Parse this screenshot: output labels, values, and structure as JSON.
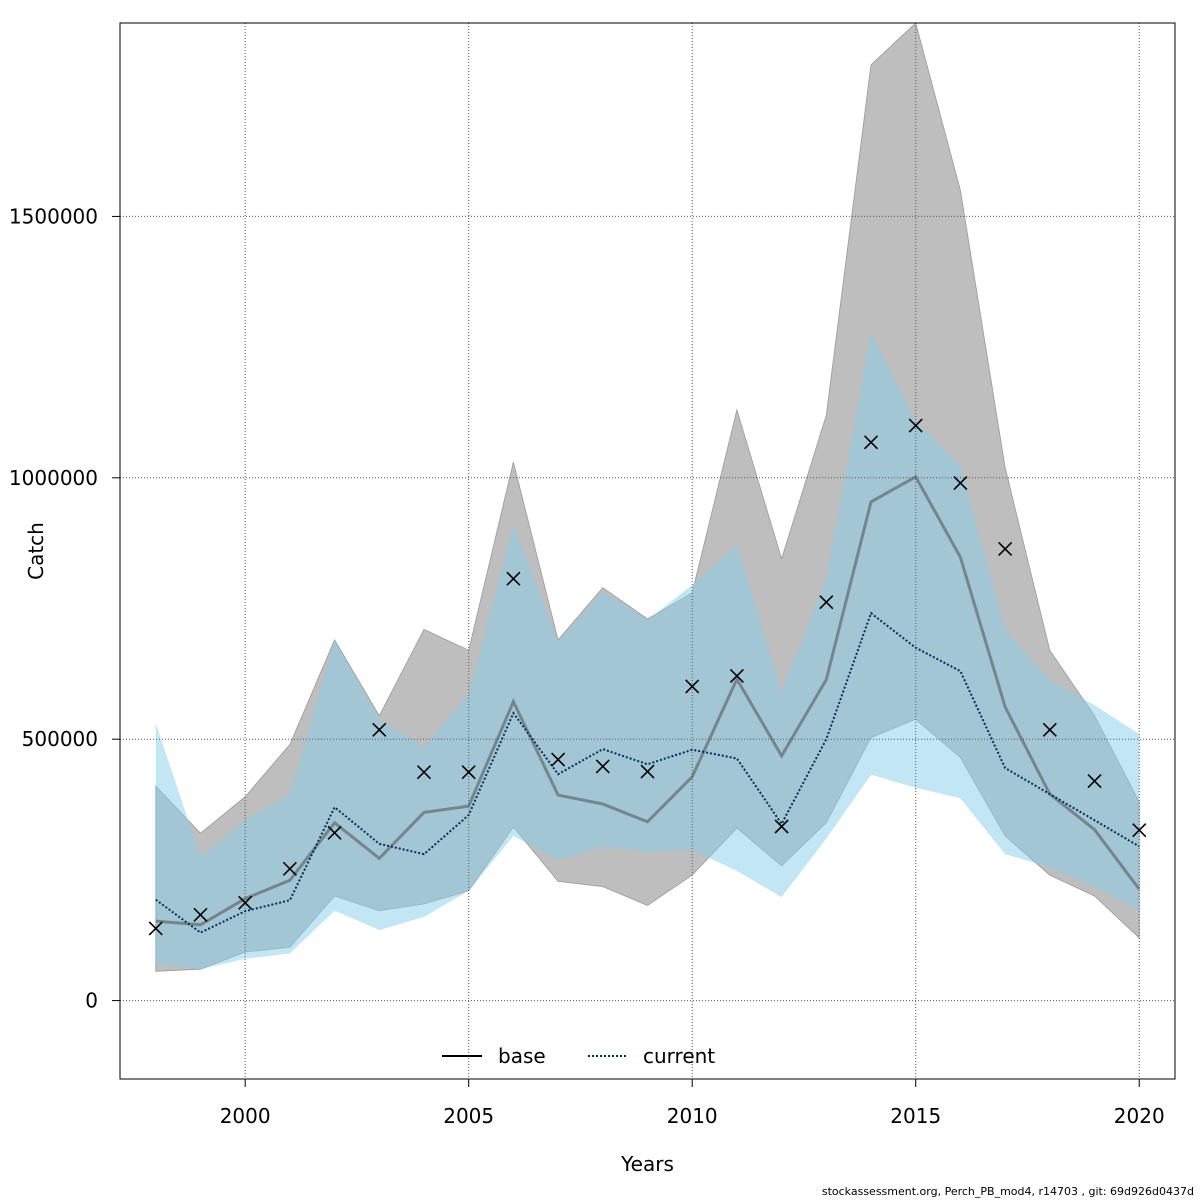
{
  "chart_data": {
    "type": "line",
    "xlabel": "Years",
    "ylabel": "Catch",
    "xlim": [
      1997.2,
      2020.8
    ],
    "ylim": [
      -150000,
      1870000
    ],
    "x_ticks": [
      2000,
      2005,
      2010,
      2015,
      2020
    ],
    "y_ticks": [
      0,
      500000,
      1000000,
      1500000
    ],
    "y_tick_labels": [
      "0",
      "500000",
      "1000000",
      "1500000"
    ],
    "grid": true,
    "legend_position": "bottom-center",
    "colors": {
      "base_line": "#000000",
      "base_band": "#bebebe",
      "current_line": "#00305a",
      "current_band": "#87ceeb",
      "band_overlap": "#a4c3d3",
      "observed_marker": "#000000"
    },
    "x": [
      1998,
      1999,
      2000,
      2001,
      2002,
      2003,
      2004,
      2005,
      2006,
      2007,
      2008,
      2009,
      2010,
      2011,
      2012,
      2013,
      2014,
      2015,
      2016,
      2017,
      2018,
      2019,
      2020
    ],
    "observed": {
      "marker": "x",
      "values": [
        138000,
        164000,
        187000,
        252000,
        321000,
        518000,
        437000,
        437000,
        807000,
        461000,
        448000,
        438000,
        601000,
        621000,
        333000,
        762000,
        1068000,
        1100000,
        990000,
        864000,
        518000,
        420000,
        326000
      ]
    },
    "series": [
      {
        "name": "base",
        "style": "solid",
        "values": [
          152000,
          145000,
          195000,
          230000,
          340000,
          272000,
          360000,
          372000,
          572000,
          393000,
          376000,
          342000,
          428000,
          615000,
          468000,
          614000,
          954000,
          1002000,
          848000,
          562000,
          395000,
          327000,
          213000
        ],
        "lower": [
          56000,
          60000,
          93000,
          102000,
          200000,
          172000,
          185000,
          210000,
          332000,
          228000,
          218000,
          182000,
          240000,
          330000,
          258000,
          340000,
          503000,
          538000,
          465000,
          315000,
          240000,
          200000,
          120000
        ],
        "upper": [
          410000,
          320000,
          390000,
          490000,
          690000,
          545000,
          710000,
          670000,
          1030000,
          690000,
          790000,
          730000,
          780000,
          1130000,
          845000,
          1120000,
          1790000,
          1870000,
          1550000,
          1020000,
          670000,
          545000,
          380000
        ]
      },
      {
        "name": "current",
        "style": "dotted",
        "values": [
          193000,
          130000,
          171000,
          192000,
          370000,
          300000,
          280000,
          355000,
          550000,
          433000,
          481000,
          452000,
          480000,
          463000,
          338000,
          500000,
          741000,
          675000,
          630000,
          445000,
          395000,
          345000,
          295000
        ],
        "lower": [
          70000,
          60000,
          80000,
          90000,
          172000,
          135000,
          160000,
          210000,
          315000,
          268000,
          295000,
          284000,
          288000,
          248000,
          198000,
          310000,
          432000,
          407000,
          387000,
          280000,
          255000,
          218000,
          173000
        ],
        "upper": [
          530000,
          275000,
          345000,
          395000,
          690000,
          537000,
          485000,
          585000,
          910000,
          688000,
          782000,
          728000,
          795000,
          872000,
          592000,
          808000,
          1277000,
          1110000,
          1022000,
          710000,
          612000,
          565000,
          510000
        ]
      }
    ]
  },
  "footer_text": "stockassessment.org, Perch_PB_mod4, r14703 , git: 69d926d0437d"
}
